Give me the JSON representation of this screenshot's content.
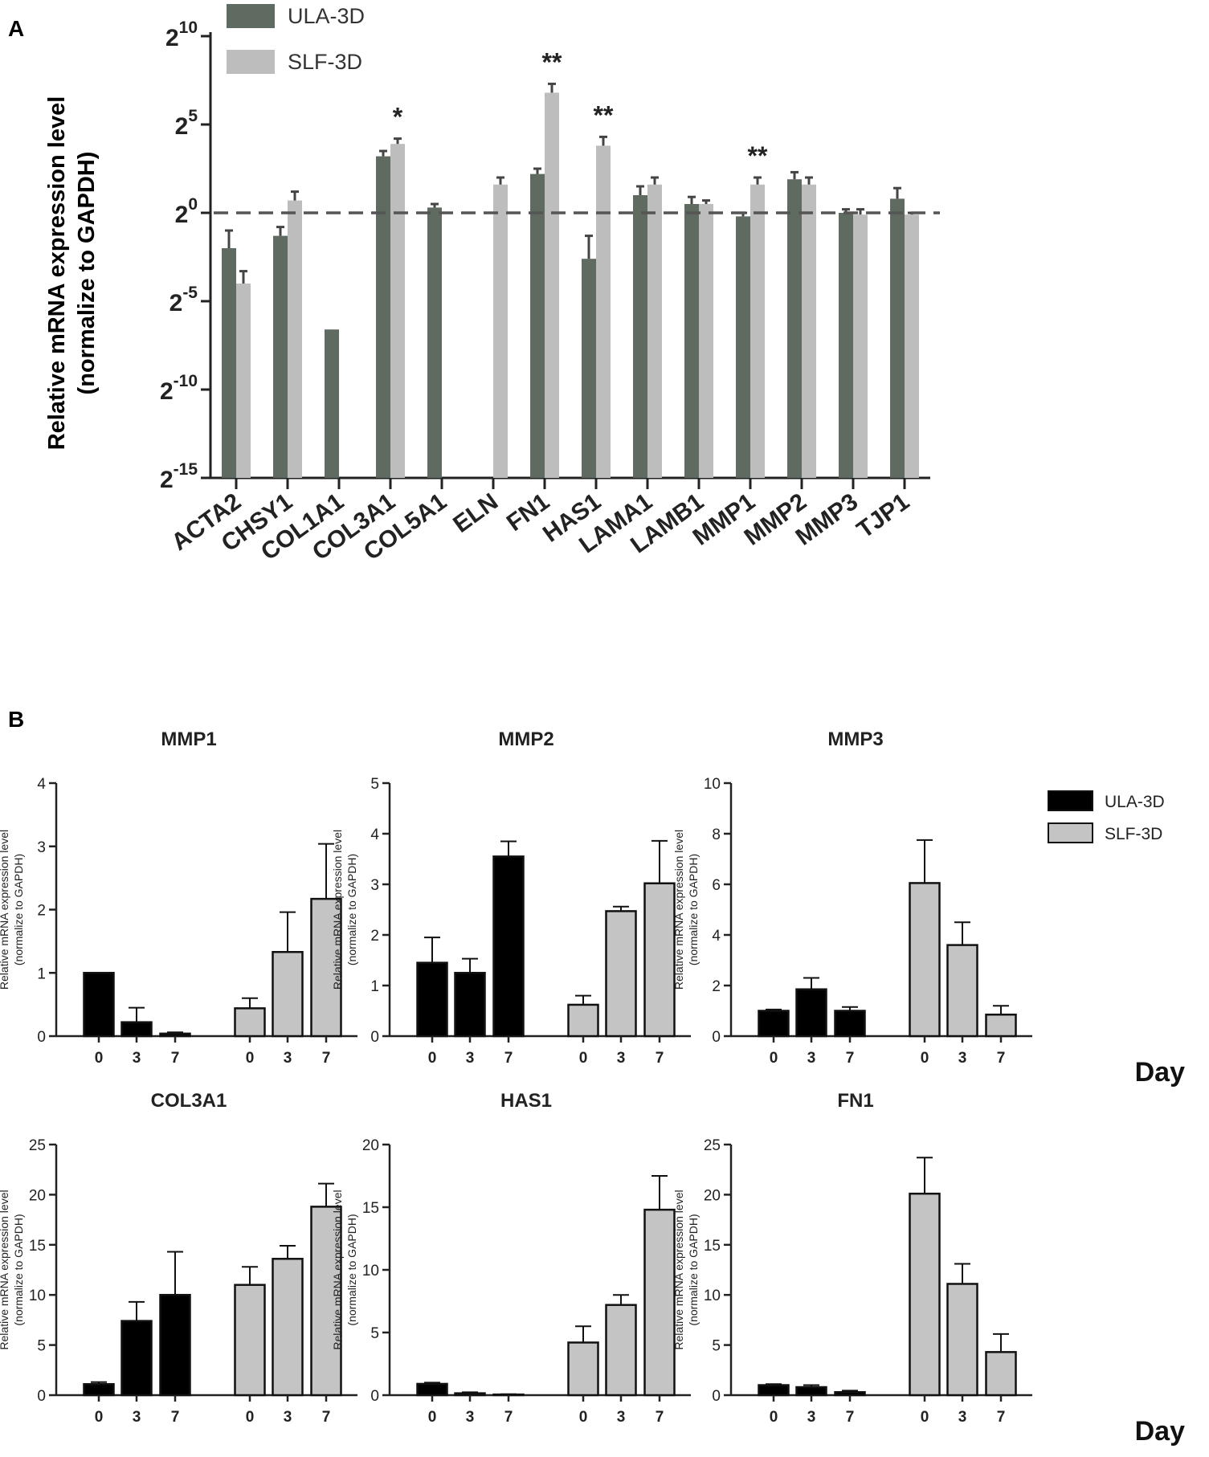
{
  "figure": {
    "panel_a_label": "A",
    "panel_b_label": "B",
    "colors": {
      "ula_a": "#5f6b60",
      "slf_a": "#bdbdbd",
      "ula_b": "#000000",
      "slf_b": "#c4c4c4",
      "axis": "#222222",
      "dash": "#555555"
    }
  },
  "chart_data": [
    {
      "id": "A",
      "type": "bar",
      "title": "",
      "ylabel_line1": "Relative mRNA expression level",
      "ylabel_line2": "(normalize to GAPDH)",
      "y_scale": "log2",
      "ylim_exponent": [
        -15,
        10
      ],
      "yticks": [
        {
          "exp": 10,
          "base": "2",
          "sup": "10"
        },
        {
          "exp": 5,
          "base": "2",
          "sup": "5"
        },
        {
          "exp": 0,
          "base": "2",
          "sup": "0"
        },
        {
          "exp": -5,
          "base": "2",
          "sup": "-5"
        },
        {
          "exp": -10,
          "base": "2",
          "sup": "-10"
        },
        {
          "exp": -15,
          "base": "2",
          "sup": "-15"
        }
      ],
      "reference_line_exponent": 0,
      "legend": [
        "ULA-3D",
        "SLF-3D"
      ],
      "categories": [
        "ACTA2",
        "CHSY1",
        "COL1A1",
        "COL3A1",
        "COL5A1",
        "ELN",
        "FN1",
        "HAS1",
        "LAMA1",
        "LAMB1",
        "MMP1",
        "MMP2",
        "MMP3",
        "TJP1"
      ],
      "series": [
        {
          "name": "ULA-3D",
          "exponents": [
            -2.0,
            -1.3,
            -6.6,
            3.2,
            0.3,
            null,
            2.2,
            -2.6,
            1.0,
            0.5,
            -0.2,
            1.9,
            0.0,
            0.8
          ],
          "errors": [
            1.0,
            0.5,
            0,
            0.3,
            0.2,
            null,
            0.3,
            1.3,
            0.5,
            0.4,
            0.2,
            0.4,
            0.2,
            0.6
          ]
        },
        {
          "name": "SLF-3D",
          "exponents": [
            -4.0,
            0.7,
            null,
            3.9,
            null,
            1.6,
            6.8,
            3.8,
            1.6,
            0.5,
            1.6,
            1.6,
            -0.1,
            -0.1
          ],
          "errors": [
            0.7,
            0.5,
            null,
            0.3,
            null,
            0.4,
            0.5,
            0.5,
            0.4,
            0.2,
            0.4,
            0.4,
            0.3,
            0.1
          ]
        }
      ],
      "significance": [
        {
          "category": "COL3A1",
          "text": "*"
        },
        {
          "category": "FN1",
          "text": "**"
        },
        {
          "category": "HAS1",
          "text": "**"
        },
        {
          "category": "MMP1",
          "text": "**"
        }
      ]
    },
    {
      "id": "B1",
      "type": "bar",
      "title": "MMP1",
      "ylabel_line1": "Relative mRNA expression level",
      "ylabel_line2": "(normalize to GAPDH)",
      "ylim": [
        0,
        4
      ],
      "yticks": [
        0,
        1,
        2,
        3,
        4
      ],
      "categories": [
        "0",
        "3",
        "7"
      ],
      "series": [
        {
          "name": "ULA-3D",
          "values": [
            1.0,
            0.22,
            0.04
          ],
          "errors": [
            0.0,
            0.23,
            0.02
          ]
        },
        {
          "name": "SLF-3D",
          "values": [
            0.44,
            1.33,
            2.17
          ],
          "errors": [
            0.16,
            0.63,
            0.87
          ]
        }
      ]
    },
    {
      "id": "B2",
      "type": "bar",
      "title": "MMP2",
      "ylabel_line1": "Relative mRNA expression level",
      "ylabel_line2": "(normalize to GAPDH)",
      "ylim": [
        0,
        5
      ],
      "yticks": [
        0,
        1,
        2,
        3,
        4,
        5
      ],
      "categories": [
        "0",
        "3",
        "7"
      ],
      "series": [
        {
          "name": "ULA-3D",
          "values": [
            1.45,
            1.25,
            3.55
          ],
          "errors": [
            0.5,
            0.28,
            0.3
          ]
        },
        {
          "name": "SLF-3D",
          "values": [
            0.62,
            2.47,
            3.02
          ],
          "errors": [
            0.18,
            0.09,
            0.84
          ]
        }
      ]
    },
    {
      "id": "B3",
      "type": "bar",
      "title": "MMP3",
      "ylabel_line1": "Relative mRNA expression level",
      "ylabel_line2": "(normalize to GAPDH)",
      "ylim": [
        0,
        10
      ],
      "yticks": [
        0,
        2,
        4,
        6,
        8,
        10
      ],
      "categories": [
        "0",
        "3",
        "7"
      ],
      "series": [
        {
          "name": "ULA-3D",
          "values": [
            1.0,
            1.85,
            1.0
          ],
          "errors": [
            0.05,
            0.45,
            0.15
          ]
        },
        {
          "name": "SLF-3D",
          "values": [
            6.05,
            3.6,
            0.85
          ],
          "errors": [
            1.7,
            0.9,
            0.35
          ]
        }
      ],
      "legend": [
        "ULA-3D",
        "SLF-3D"
      ],
      "xlabel": "Day"
    },
    {
      "id": "B4",
      "type": "bar",
      "title": "COL3A1",
      "ylabel_line1": "Relative mRNA expression level",
      "ylabel_line2": "(normalize to GAPDH)",
      "ylim": [
        0,
        25
      ],
      "yticks": [
        0,
        5,
        10,
        15,
        20,
        25
      ],
      "categories": [
        "0",
        "3",
        "7"
      ],
      "series": [
        {
          "name": "ULA-3D",
          "values": [
            1.1,
            7.4,
            10.0
          ],
          "errors": [
            0.2,
            1.9,
            4.3
          ]
        },
        {
          "name": "SLF-3D",
          "values": [
            11.0,
            13.6,
            18.8
          ],
          "errors": [
            1.8,
            1.3,
            2.3
          ]
        }
      ]
    },
    {
      "id": "B5",
      "type": "bar",
      "title": "HAS1",
      "ylabel_line1": "Relative mRNA expression level",
      "ylabel_line2": "(normalize to GAPDH)",
      "ylim": [
        0,
        20
      ],
      "yticks": [
        0,
        5,
        10,
        15,
        20
      ],
      "categories": [
        "0",
        "3",
        "7"
      ],
      "series": [
        {
          "name": "ULA-3D",
          "values": [
            0.9,
            0.15,
            0.05
          ],
          "errors": [
            0.1,
            0.08,
            0.03
          ]
        },
        {
          "name": "SLF-3D",
          "values": [
            4.2,
            7.2,
            14.8
          ],
          "errors": [
            1.3,
            0.8,
            2.7
          ]
        }
      ]
    },
    {
      "id": "B6",
      "type": "bar",
      "title": "FN1",
      "ylabel_line1": "Relative mRNA expression level",
      "ylabel_line2": "(normalize to GAPDH)",
      "ylim": [
        0,
        25
      ],
      "yticks": [
        0,
        5,
        10,
        15,
        20,
        25
      ],
      "categories": [
        "0",
        "3",
        "7"
      ],
      "series": [
        {
          "name": "ULA-3D",
          "values": [
            1.0,
            0.8,
            0.3
          ],
          "errors": [
            0.1,
            0.2,
            0.15
          ]
        },
        {
          "name": "SLF-3D",
          "values": [
            20.1,
            11.1,
            4.3
          ],
          "errors": [
            3.6,
            2.0,
            1.8
          ]
        }
      ],
      "xlabel": "Day"
    }
  ]
}
